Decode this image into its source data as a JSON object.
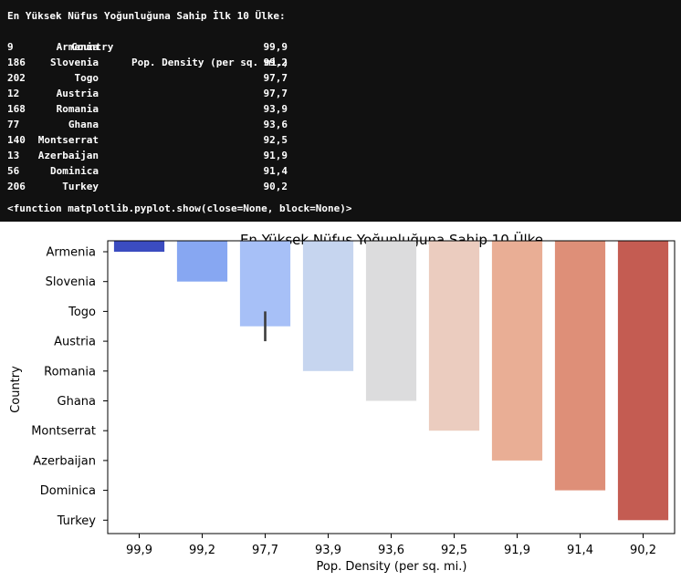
{
  "console": {
    "heading": "En Yüksek Nüfus Yoğunluğuna Sahip İlk 10 Ülke:",
    "columns": [
      "Country",
      "Pop. Density (per sq. mi.)"
    ],
    "rows": [
      {
        "index": "9",
        "country": "Armenia",
        "density": "99,9"
      },
      {
        "index": "186",
        "country": "Slovenia",
        "density": "99,2"
      },
      {
        "index": "202",
        "country": "Togo",
        "density": "97,7"
      },
      {
        "index": "12",
        "country": "Austria",
        "density": "97,7"
      },
      {
        "index": "168",
        "country": "Romania",
        "density": "93,9"
      },
      {
        "index": "77",
        "country": "Ghana",
        "density": "93,6"
      },
      {
        "index": "140",
        "country": "Montserrat",
        "density": "92,5"
      },
      {
        "index": "13",
        "country": "Azerbaijan",
        "density": "91,9"
      },
      {
        "index": "56",
        "country": "Dominica",
        "density": "91,4"
      },
      {
        "index": "206",
        "country": "Turkey",
        "density": "90,2"
      }
    ],
    "output": "<function matplotlib.pyplot.show(close=None, block=None)>"
  },
  "chart_data": {
    "type": "bar",
    "title": "En Yüksek Nüfus Yoğunluğuna Sahip 10 Ülke",
    "xlabel": "Pop. Density (per sq. mi.)",
    "ylabel": "Country",
    "x_categories": [
      "99,9",
      "99,2",
      "97,7",
      "93,9",
      "93,6",
      "92,5",
      "91,9",
      "91,4",
      "90,2"
    ],
    "y_categories": [
      "Armenia",
      "Slovenia",
      "Togo",
      "Austria",
      "Romania",
      "Ghana",
      "Montserrat",
      "Azerbaijan",
      "Dominica",
      "Turkey"
    ],
    "bars": [
      {
        "x": "99,9",
        "y_end": 0.0,
        "color": "#3b4cc0"
      },
      {
        "x": "99,2",
        "y_end": 1.0,
        "color": "#87a7f2"
      },
      {
        "x": "97,7",
        "y_end": 2.5,
        "y_err": [
          2.0,
          3.0
        ],
        "color": "#a7c0f7"
      },
      {
        "x": "93,9",
        "y_end": 4.0,
        "color": "#c6d5ef"
      },
      {
        "x": "93,6",
        "y_end": 5.0,
        "color": "#dcdcdd"
      },
      {
        "x": "92,5",
        "y_end": 6.0,
        "color": "#ebccbf"
      },
      {
        "x": "91,9",
        "y_end": 7.0,
        "color": "#e9ae95"
      },
      {
        "x": "91,4",
        "y_end": 8.0,
        "color": "#de8f78"
      },
      {
        "x": "90,2",
        "y_end": 9.0,
        "color": "#c45c52"
      }
    ],
    "grid": false,
    "legend": "none"
  }
}
